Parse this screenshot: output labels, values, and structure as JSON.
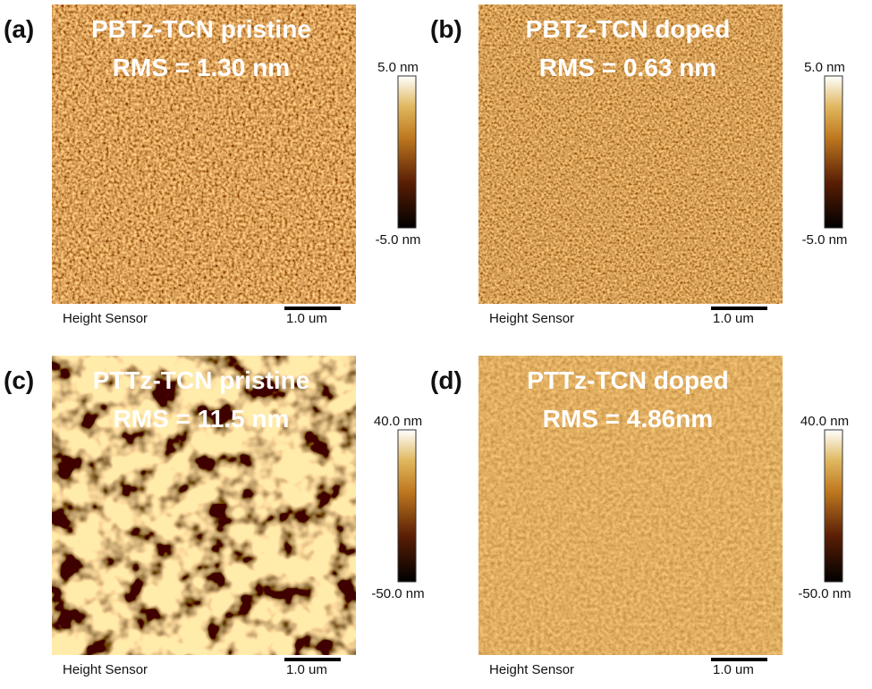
{
  "panels": [
    {
      "label": "(a)",
      "title": "PBTz-TCN pristine",
      "rms": "RMS = 1.30 nm",
      "colorbar_max": "5.0 nm",
      "colorbar_min": "-5.0 nm",
      "sensor": "Height Sensor",
      "scale_bar": "1.0 um"
    },
    {
      "label": "(b)",
      "title": "PBTz-TCN doped",
      "rms": "RMS = 0.63 nm",
      "colorbar_max": "5.0 nm",
      "colorbar_min": "-5.0 nm",
      "sensor": "Height Sensor",
      "scale_bar": "1.0 um"
    },
    {
      "label": "(c)",
      "title": "PTTz-TCN pristine",
      "rms": "RMS = 11.5 nm",
      "colorbar_max": "40.0 nm",
      "colorbar_min": "-50.0 nm",
      "sensor": "Height Sensor",
      "scale_bar": "1.0 um"
    },
    {
      "label": "(d)",
      "title": "PTTz-TCN doped",
      "rms": "RMS = 4.86nm",
      "colorbar_max": "40.0 nm",
      "colorbar_min": "-50.0 nm",
      "sensor": "Height Sensor",
      "scale_bar": "1.0 um"
    }
  ]
}
